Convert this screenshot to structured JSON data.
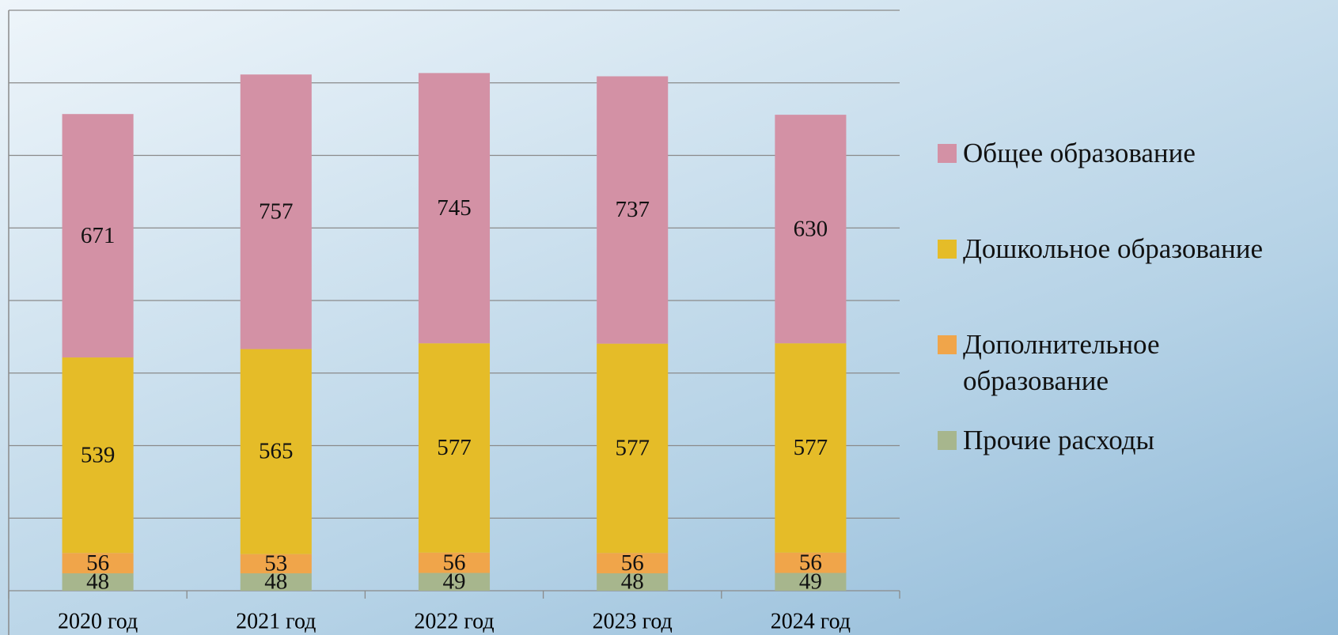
{
  "chart_data": {
    "type": "stacked_bar",
    "categories": [
      "2020 год",
      "2021 год",
      "2022 год",
      "2023 год",
      "2024 год"
    ],
    "series": [
      {
        "name": "Прочие расходы",
        "color": "#a7b68d",
        "values": [
          48,
          48,
          49,
          48,
          49
        ]
      },
      {
        "name": "Дополнительное образование",
        "color": "#f0a54a",
        "values": [
          56,
          53,
          56,
          56,
          56
        ]
      },
      {
        "name": "Дошкольное образование",
        "color": "#e5bc28",
        "values": [
          539,
          565,
          577,
          577,
          577
        ]
      },
      {
        "name": "Общее образование",
        "color": "#d391a5",
        "values": [
          671,
          757,
          745,
          737,
          630
        ]
      }
    ],
    "ylim": [
      0,
      1600
    ],
    "yticks": [
      0,
      200,
      400,
      600,
      800,
      1000,
      1200,
      1400,
      1600
    ],
    "grid": true
  }
}
